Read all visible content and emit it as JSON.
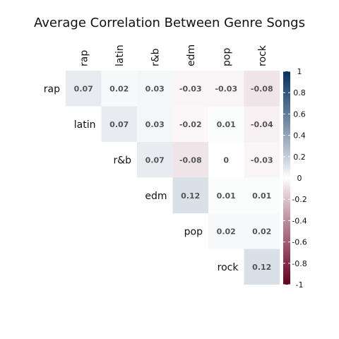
{
  "chart_data": {
    "type": "heatmap",
    "title": "Average Correlation Between Genre Songs",
    "labels": [
      "rap",
      "latin",
      "r&b",
      "edm",
      "pop",
      "rock"
    ],
    "matrix_upper": [
      [
        0.07,
        0.02,
        0.03,
        -0.03,
        -0.03,
        -0.08
      ],
      [
        null,
        0.07,
        0.03,
        -0.02,
        0.01,
        -0.04
      ],
      [
        null,
        null,
        0.07,
        -0.08,
        0,
        -0.03
      ],
      [
        null,
        null,
        null,
        0.12,
        0.01,
        0.01
      ],
      [
        null,
        null,
        null,
        null,
        0.02,
        0.02
      ],
      [
        null,
        null,
        null,
        null,
        null,
        0.12
      ]
    ],
    "value_labels": [
      [
        "0.07",
        "0.02",
        "0.03",
        "-0.03",
        "-0.03",
        "-0.08"
      ],
      [
        null,
        "0.07",
        "0.03",
        "-0.02",
        "0.01",
        "-0.04"
      ],
      [
        null,
        null,
        "0.07",
        "-0.08",
        "0",
        "-0.03"
      ],
      [
        null,
        null,
        null,
        "0.12",
        "0.01",
        "0.01"
      ],
      [
        null,
        null,
        null,
        null,
        "0.02",
        "0.02"
      ],
      [
        null,
        null,
        null,
        null,
        null,
        "0.12"
      ]
    ],
    "colorbar": {
      "range": [
        -1,
        1
      ],
      "tick_values": [
        1,
        0.8,
        0.6,
        0.4,
        0.2,
        0,
        -0.2,
        -0.4,
        -0.6,
        -0.8,
        -1
      ],
      "tick_labels": [
        "1",
        "0.8",
        "0.6",
        "0.4",
        "0.2",
        "0",
        "-0.2",
        "-0.4",
        "-0.6",
        "-0.8",
        "-1"
      ],
      "colors": {
        "low": "#67001f",
        "mid": "#ffffff",
        "high": "#053061"
      }
    }
  }
}
